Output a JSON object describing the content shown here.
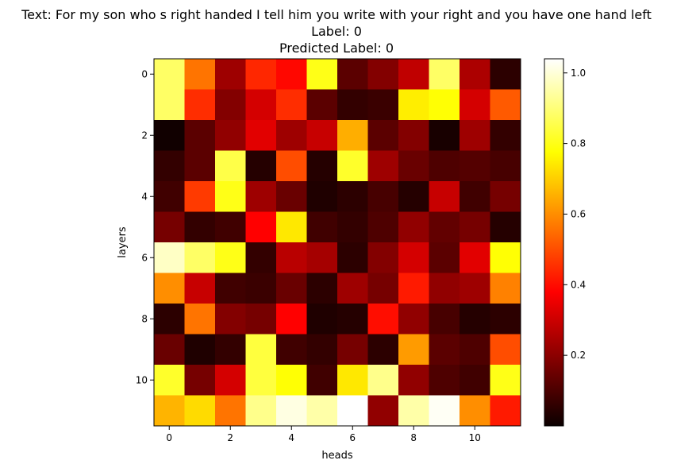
{
  "title_lines": [
    "Text: For my son who s right handed I tell him you write with your right and you have one hand left",
    "Label: 0",
    "Predicted Label: 0"
  ],
  "chart_data": {
    "type": "heatmap",
    "xlabel": "heads",
    "ylabel": "layers",
    "colormap": "hot",
    "x_ticks": [
      0,
      2,
      4,
      6,
      8,
      10
    ],
    "y_ticks": [
      0,
      2,
      4,
      6,
      8,
      10
    ],
    "colorbar": {
      "min": 0.0,
      "max": 1.04,
      "ticks": [
        0.2,
        0.4,
        0.6,
        0.8,
        1.0
      ],
      "tick_labels": [
        "0.2",
        "0.4",
        "0.6",
        "0.8",
        "1.0"
      ]
    },
    "values": [
      [
        0.88,
        0.56,
        0.22,
        0.44,
        0.39,
        0.8,
        0.12,
        0.18,
        0.27,
        0.88,
        0.24,
        0.05
      ],
      [
        0.88,
        0.45,
        0.18,
        0.3,
        0.45,
        0.12,
        0.06,
        0.07,
        0.75,
        0.78,
        0.3,
        0.52
      ],
      [
        0.01,
        0.12,
        0.2,
        0.32,
        0.22,
        0.28,
        0.65,
        0.12,
        0.18,
        0.02,
        0.22,
        0.06
      ],
      [
        0.06,
        0.12,
        0.85,
        0.04,
        0.5,
        0.04,
        0.82,
        0.22,
        0.14,
        0.1,
        0.11,
        0.09
      ],
      [
        0.08,
        0.47,
        0.8,
        0.22,
        0.14,
        0.03,
        0.05,
        0.09,
        0.04,
        0.28,
        0.08,
        0.16
      ],
      [
        0.16,
        0.06,
        0.08,
        0.38,
        0.74,
        0.08,
        0.06,
        0.1,
        0.2,
        0.13,
        0.16,
        0.04
      ],
      [
        0.98,
        0.88,
        0.8,
        0.06,
        0.26,
        0.23,
        0.05,
        0.18,
        0.3,
        0.12,
        0.32,
        0.78
      ],
      [
        0.6,
        0.28,
        0.08,
        0.07,
        0.14,
        0.05,
        0.22,
        0.16,
        0.42,
        0.2,
        0.22,
        0.58
      ],
      [
        0.05,
        0.56,
        0.18,
        0.16,
        0.38,
        0.03,
        0.04,
        0.4,
        0.2,
        0.09,
        0.04,
        0.05
      ],
      [
        0.14,
        0.03,
        0.06,
        0.84,
        0.08,
        0.06,
        0.16,
        0.05,
        0.62,
        0.12,
        0.1,
        0.5
      ],
      [
        0.82,
        0.16,
        0.3,
        0.84,
        0.78,
        0.08,
        0.74,
        0.92,
        0.2,
        0.1,
        0.08,
        0.8
      ],
      [
        0.66,
        0.72,
        0.56,
        0.92,
        1.01,
        0.95,
        1.04,
        0.2,
        0.95,
        1.03,
        0.6,
        0.42
      ]
    ]
  }
}
